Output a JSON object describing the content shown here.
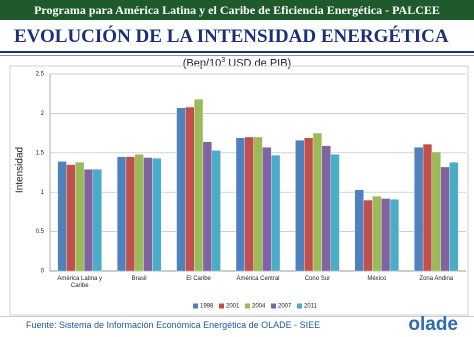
{
  "header": {
    "title": "Programa para América Latina y el Caribe de Eficiencia Energética - PALCEE"
  },
  "chart_data": {
    "type": "bar",
    "title": "EVOLUCIÓN DE LA INTENSIDAD ENERGÉTICA",
    "subtitle": {
      "before": "(Bep/10",
      "sup": "3",
      "after": " USD de PIB)"
    },
    "y_label": "Intensidad",
    "categories": [
      "América Latina y Caribe",
      "Brasil",
      "El Caribe",
      "América Central",
      "Cono Sur",
      "México",
      "Zona Andina"
    ],
    "series": [
      {
        "name": "1998",
        "color": "#4f81bd",
        "values": [
          1.39,
          1.45,
          2.07,
          1.69,
          1.66,
          1.03,
          1.57
        ]
      },
      {
        "name": "2001",
        "color": "#c0504d",
        "values": [
          1.35,
          1.45,
          2.08,
          1.7,
          1.69,
          0.9,
          1.61
        ]
      },
      {
        "name": "2004",
        "color": "#9bbb59",
        "values": [
          1.38,
          1.48,
          2.18,
          1.7,
          1.75,
          0.95,
          1.51
        ]
      },
      {
        "name": "2007",
        "color": "#8064a2",
        "values": [
          1.29,
          1.44,
          1.64,
          1.57,
          1.59,
          0.92,
          1.32
        ]
      },
      {
        "name": "2011",
        "color": "#4bacc6",
        "values": [
          1.29,
          1.43,
          1.53,
          1.47,
          1.48,
          0.91,
          1.38
        ]
      }
    ],
    "ylim": [
      0,
      2.5
    ],
    "yticks": [
      0,
      0.5,
      1,
      1.5,
      2,
      2.5
    ],
    "grid": true,
    "legend": "bottom"
  },
  "footer": {
    "source": "Fuente: Sistema de Información Económica Energética de OLADE - SIEE",
    "logo": "olade"
  }
}
